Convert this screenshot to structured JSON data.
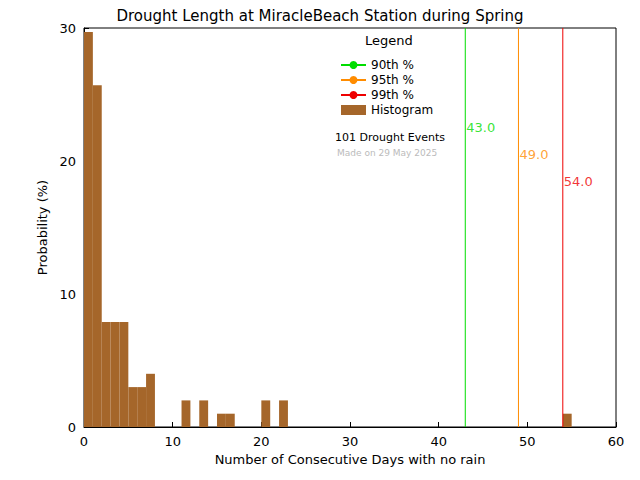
{
  "chart_data": {
    "type": "histogram",
    "title": "Drought Length at MiracleBeach Station during Spring",
    "xlabel": "Number of Consecutive Days with no rain",
    "ylabel": "Probability (%)",
    "name": "Histogram",
    "color": "#a5662a",
    "bins": [
      0,
      1,
      2,
      3,
      4,
      5,
      6,
      7,
      8,
      9,
      10,
      11,
      12,
      13,
      14,
      15,
      16,
      17,
      18,
      19,
      20,
      21,
      22,
      23,
      24,
      25,
      26,
      27,
      28,
      29,
      30,
      31,
      32,
      33,
      34,
      35,
      36,
      37,
      38,
      39,
      40,
      41,
      42,
      43,
      44,
      45,
      46,
      47,
      48,
      49,
      50,
      51,
      52,
      53,
      54,
      55,
      56,
      57,
      58,
      59,
      60
    ],
    "values": [
      29.7,
      25.7,
      7.9,
      7.9,
      7.9,
      3.0,
      3.0,
      4.0,
      0,
      0,
      0,
      2.0,
      0,
      2.0,
      0,
      1.0,
      1.0,
      0,
      0,
      0,
      2.0,
      0,
      2.0,
      0,
      0,
      0,
      0,
      0,
      0,
      0,
      0,
      0,
      0,
      0,
      0,
      0,
      0,
      0,
      0,
      0,
      0,
      0,
      0,
      0,
      0,
      0,
      0,
      0,
      0,
      0,
      0,
      0,
      0,
      0,
      1.0,
      0,
      0,
      0,
      0,
      0
    ],
    "xlim": [
      0,
      60
    ],
    "ylim": [
      0,
      30
    ],
    "xticks": [
      0,
      10,
      20,
      30,
      40,
      50,
      60
    ],
    "yticks": [
      0,
      10,
      20,
      30
    ],
    "legend": "upper right",
    "lines": [
      {
        "name": "90th %",
        "x": 43.0,
        "label": "43.0",
        "color": "#00dd00"
      },
      {
        "name": "95th %",
        "x": 49.0,
        "label": "49.0",
        "color": "#ff8c00"
      },
      {
        "name": "99th %",
        "x": 54.0,
        "label": "54.0",
        "color": "#ee0000"
      }
    ],
    "annotations": [
      "Legend",
      "101 Drought Events",
      "Made on 29 May 2025"
    ]
  }
}
